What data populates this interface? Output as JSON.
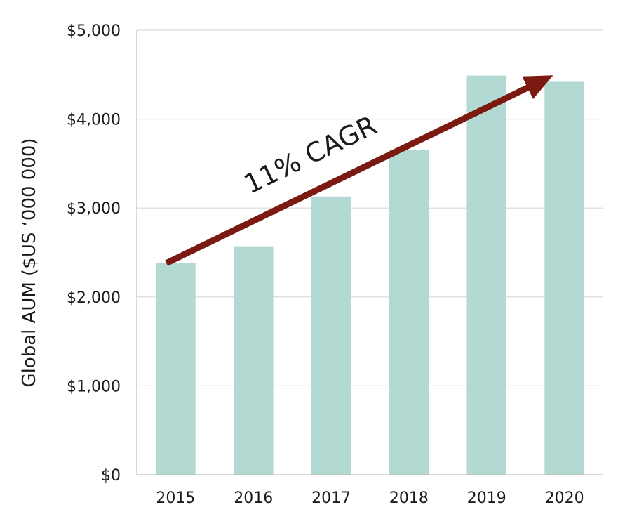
{
  "chart_data": {
    "type": "bar",
    "categories": [
      "2015",
      "2016",
      "2017",
      "2018",
      "2019",
      "2020"
    ],
    "values": [
      2380,
      2570,
      3130,
      3650,
      4490,
      4420
    ],
    "ylabel": "Global AUM ($US ‘000 000)",
    "xlabel": "",
    "ylim": [
      0,
      5000
    ],
    "yticks": [
      0,
      1000,
      2000,
      3000,
      4000,
      5000
    ],
    "ytick_labels": [
      "$0",
      "$1,000",
      "$2,000",
      "$3,000",
      "$4,000",
      "$5,000"
    ],
    "grid": true,
    "bar_color": "#b2dad2",
    "annotation": {
      "text": "11% CAGR",
      "arrow_from": {
        "category": "2015",
        "value": 2380
      },
      "arrow_to": {
        "category": "2020",
        "value": 4490
      },
      "color": "#7b1a10"
    }
  }
}
